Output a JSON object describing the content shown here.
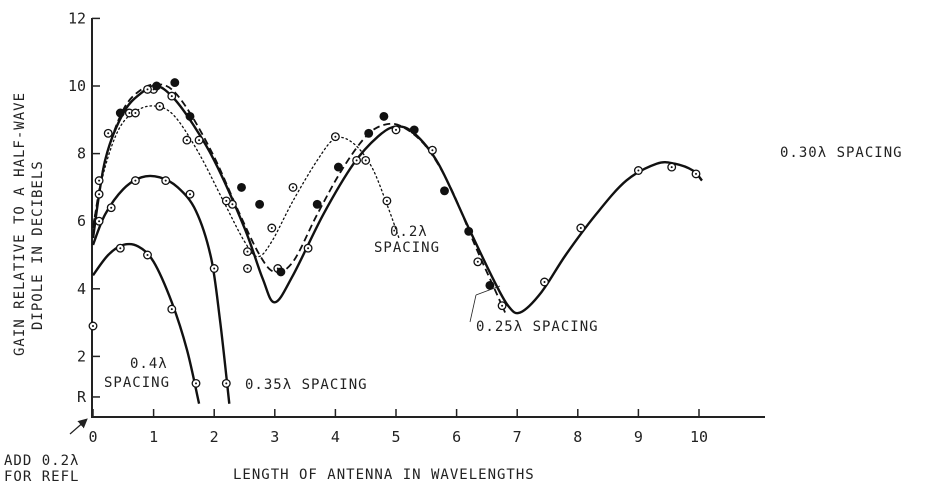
{
  "chart_data": {
    "type": "line",
    "title": "",
    "xlabel": "LENGTH OF ANTENNA IN WAVELENGTHS",
    "ylabel_lines": [
      "GAIN RELATIVE TO A HALF-WAVE",
      "DIPOLE IN DECIBELS"
    ],
    "xlim": [
      0,
      10
    ],
    "ylim": [
      0,
      12
    ],
    "grid": false,
    "x_ticks": [
      0,
      1,
      2,
      3,
      4,
      5,
      6,
      7,
      8,
      9,
      10
    ],
    "x_tick_labels": [
      "0",
      "1",
      "2",
      "3",
      "4",
      "5",
      "6",
      "7",
      "8",
      "9",
      "10"
    ],
    "y_ticks": [
      0.8,
      2,
      4,
      6,
      8,
      10,
      12
    ],
    "y_tick_labels": [
      "R",
      "2",
      "4",
      "6",
      "8",
      "10",
      "12"
    ],
    "corner_note_lines": [
      "ADD 0.2λ",
      "FOR REFL"
    ],
    "series": [
      {
        "name": "0.30λ SPACING",
        "label_lines": [
          "0.30λ SPACING"
        ],
        "line_style": "solid",
        "marker": "open",
        "points": [
          [
            0.1,
            6.8
          ],
          [
            0.25,
            8.6
          ],
          [
            0.6,
            9.2
          ],
          [
            1.0,
            9.9
          ],
          [
            1.3,
            9.7
          ],
          [
            1.75,
            8.4
          ],
          [
            2.3,
            6.5
          ],
          [
            2.55,
            4.6
          ],
          [
            3.05,
            4.6
          ],
          [
            3.55,
            5.2
          ],
          [
            5.0,
            8.7
          ],
          [
            5.6,
            8.1
          ],
          [
            6.35,
            4.8
          ],
          [
            6.75,
            3.5
          ],
          [
            7.45,
            4.2
          ],
          [
            8.05,
            5.8
          ],
          [
            9.0,
            7.5
          ],
          [
            9.55,
            7.6
          ],
          [
            9.95,
            7.4
          ]
        ],
        "curve": [
          [
            0.0,
            5.5
          ],
          [
            0.2,
            7.8
          ],
          [
            0.5,
            9.2
          ],
          [
            0.8,
            9.8
          ],
          [
            1.05,
            10.0
          ],
          [
            1.3,
            9.7
          ],
          [
            1.6,
            9.0
          ],
          [
            2.0,
            7.8
          ],
          [
            2.5,
            5.8
          ],
          [
            2.8,
            4.3
          ],
          [
            3.0,
            3.6
          ],
          [
            3.3,
            4.4
          ],
          [
            3.8,
            6.2
          ],
          [
            4.3,
            7.7
          ],
          [
            4.7,
            8.5
          ],
          [
            5.0,
            8.8
          ],
          [
            5.3,
            8.6
          ],
          [
            5.7,
            7.7
          ],
          [
            6.2,
            5.8
          ],
          [
            6.6,
            4.3
          ],
          [
            6.85,
            3.5
          ],
          [
            7.05,
            3.3
          ],
          [
            7.4,
            3.9
          ],
          [
            7.8,
            5.0
          ],
          [
            8.3,
            6.2
          ],
          [
            8.8,
            7.2
          ],
          [
            9.3,
            7.7
          ],
          [
            9.6,
            7.7
          ],
          [
            9.9,
            7.5
          ],
          [
            10.05,
            7.2
          ]
        ]
      },
      {
        "name": "0.25λ SPACING",
        "label_lines": [
          "0.25λ SPACING"
        ],
        "line_style": "dashed",
        "marker": "filled",
        "points": [
          [
            0.45,
            9.2
          ],
          [
            1.05,
            10.0
          ],
          [
            1.35,
            10.1
          ],
          [
            1.6,
            9.1
          ],
          [
            2.45,
            7.0
          ],
          [
            2.75,
            6.5
          ],
          [
            3.1,
            4.5
          ],
          [
            3.7,
            6.5
          ],
          [
            4.05,
            7.6
          ],
          [
            4.55,
            8.6
          ],
          [
            4.8,
            9.1
          ],
          [
            5.3,
            8.7
          ],
          [
            5.8,
            6.9
          ],
          [
            6.2,
            5.7
          ],
          [
            6.55,
            4.1
          ]
        ],
        "curve": [
          [
            0.0,
            5.8
          ],
          [
            0.2,
            7.8
          ],
          [
            0.5,
            9.3
          ],
          [
            0.8,
            9.9
          ],
          [
            1.05,
            10.05
          ],
          [
            1.3,
            9.9
          ],
          [
            1.6,
            9.2
          ],
          [
            2.0,
            7.9
          ],
          [
            2.4,
            6.3
          ],
          [
            2.75,
            5.0
          ],
          [
            3.0,
            4.5
          ],
          [
            3.3,
            4.8
          ],
          [
            3.7,
            6.2
          ],
          [
            4.1,
            7.5
          ],
          [
            4.5,
            8.5
          ],
          [
            4.8,
            8.85
          ],
          [
            5.1,
            8.8
          ],
          [
            5.5,
            8.2
          ],
          [
            5.9,
            7.0
          ],
          [
            6.3,
            5.3
          ],
          [
            6.6,
            4.1
          ],
          [
            6.8,
            3.3
          ]
        ]
      },
      {
        "name": "0.2λ SPACING",
        "label_lines": [
          "0.2λ",
          "SPACING"
        ],
        "line_style": "dotted",
        "marker": "open",
        "points": [
          [
            0.1,
            7.2
          ],
          [
            0.7,
            9.2
          ],
          [
            0.9,
            9.9
          ],
          [
            1.1,
            9.4
          ],
          [
            1.55,
            8.4
          ],
          [
            2.2,
            6.6
          ],
          [
            2.55,
            5.1
          ],
          [
            2.95,
            5.8
          ],
          [
            3.3,
            7.0
          ],
          [
            4.0,
            8.5
          ],
          [
            4.35,
            7.8
          ],
          [
            4.5,
            7.8
          ],
          [
            4.85,
            6.6
          ]
        ],
        "curve": [
          [
            0.0,
            5.9
          ],
          [
            0.2,
            7.6
          ],
          [
            0.45,
            8.8
          ],
          [
            0.75,
            9.3
          ],
          [
            1.05,
            9.4
          ],
          [
            1.35,
            9.1
          ],
          [
            1.75,
            8.0
          ],
          [
            2.15,
            6.6
          ],
          [
            2.5,
            5.4
          ],
          [
            2.72,
            4.95
          ],
          [
            2.95,
            5.4
          ],
          [
            3.3,
            6.6
          ],
          [
            3.7,
            7.8
          ],
          [
            4.0,
            8.45
          ],
          [
            4.3,
            8.3
          ],
          [
            4.6,
            7.6
          ],
          [
            4.85,
            6.5
          ],
          [
            5.05,
            5.5
          ]
        ]
      },
      {
        "name": "0.35λ SPACING",
        "label_lines": [
          "0.35λ SPACING"
        ],
        "line_style": "solid",
        "marker": "open",
        "points": [
          [
            0.1,
            6.0
          ],
          [
            0.3,
            6.4
          ],
          [
            0.7,
            7.2
          ],
          [
            1.2,
            7.2
          ],
          [
            1.6,
            6.8
          ],
          [
            2.0,
            4.6
          ],
          [
            2.2,
            1.2
          ]
        ],
        "curve": [
          [
            0.0,
            5.3
          ],
          [
            0.2,
            6.2
          ],
          [
            0.5,
            6.95
          ],
          [
            0.8,
            7.3
          ],
          [
            1.1,
            7.3
          ],
          [
            1.4,
            7.0
          ],
          [
            1.7,
            6.3
          ],
          [
            1.95,
            4.9
          ],
          [
            2.1,
            3.0
          ],
          [
            2.25,
            0.6
          ]
        ]
      },
      {
        "name": "0.4λ SPACING",
        "label_lines": [
          "0.4λ",
          "SPACING"
        ],
        "line_style": "solid",
        "marker": "open",
        "points": [
          [
            0.0,
            2.9
          ],
          [
            0.45,
            5.2
          ],
          [
            0.9,
            5.0
          ],
          [
            1.3,
            3.4
          ],
          [
            1.7,
            1.2
          ]
        ],
        "curve": [
          [
            0.0,
            4.4
          ],
          [
            0.25,
            5.0
          ],
          [
            0.5,
            5.3
          ],
          [
            0.75,
            5.25
          ],
          [
            1.0,
            4.8
          ],
          [
            1.3,
            3.6
          ],
          [
            1.55,
            2.2
          ],
          [
            1.75,
            0.6
          ]
        ]
      }
    ]
  }
}
